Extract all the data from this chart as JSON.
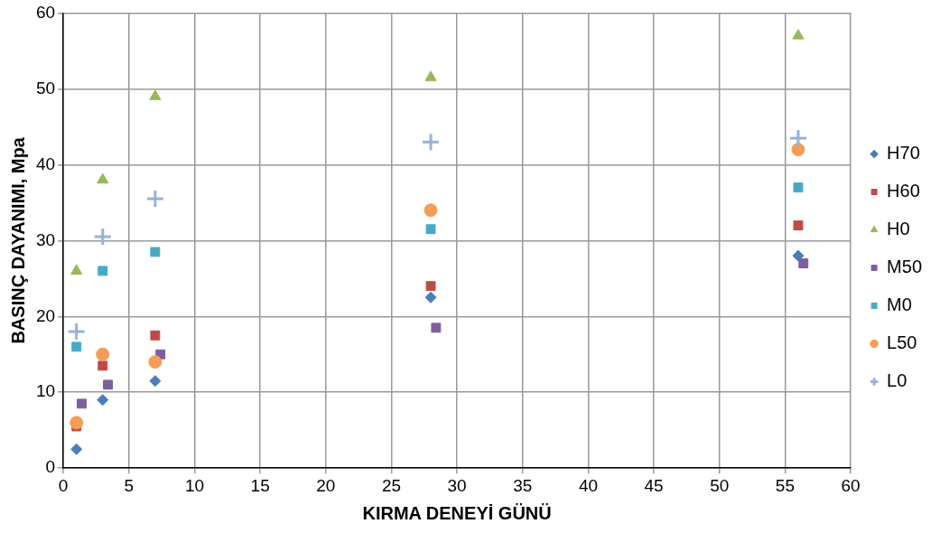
{
  "chart_data": {
    "type": "scatter",
    "xlabel": "KIRMA DENEYİ GÜNÜ",
    "ylabel": "BASINÇ DAYANIMI, Mpa",
    "xlim": [
      0,
      60
    ],
    "xticks": [
      0,
      5,
      10,
      15,
      20,
      25,
      30,
      35,
      40,
      45,
      50,
      55,
      60
    ],
    "ylim": [
      0,
      60
    ],
    "yticks": [
      0,
      10,
      20,
      30,
      40,
      50,
      60
    ],
    "grid": true,
    "legend": "right",
    "series": [
      {
        "name": "H70",
        "color": "#4a7ebb",
        "marker": "diamond",
        "x": [
          1,
          3,
          7,
          28,
          56
        ],
        "values": [
          2.5,
          9,
          11.5,
          22.5,
          28
        ]
      },
      {
        "name": "H60",
        "color": "#be4b48",
        "marker": "square",
        "x": [
          1,
          3,
          7,
          28,
          56
        ],
        "values": [
          5.5,
          13.5,
          17.5,
          24,
          32
        ]
      },
      {
        "name": "H0",
        "color": "#98b954",
        "marker": "triangle",
        "x": [
          1,
          3,
          7,
          28,
          56
        ],
        "values": [
          26,
          38,
          49,
          51.5,
          57
        ]
      },
      {
        "name": "M50",
        "color": "#7d5fa0",
        "marker": "square",
        "x": [
          1.4,
          3.4,
          7.4,
          28.4,
          56.4
        ],
        "values": [
          8.5,
          11,
          15,
          18.5,
          27
        ]
      },
      {
        "name": "M0",
        "color": "#46aac5",
        "marker": "square",
        "x": [
          1,
          3,
          7,
          28,
          56
        ],
        "values": [
          16,
          26,
          28.5,
          31.5,
          37
        ]
      },
      {
        "name": "L50",
        "color": "#f59d56",
        "marker": "circle",
        "x": [
          1,
          3,
          7,
          28,
          56
        ],
        "values": [
          6,
          15,
          14,
          34,
          42
        ]
      },
      {
        "name": "L0",
        "color": "#95b3d7",
        "marker": "cross",
        "x": [
          1,
          3,
          7,
          28,
          56
        ],
        "values": [
          18,
          30.5,
          35.5,
          43,
          43.5
        ]
      }
    ]
  }
}
